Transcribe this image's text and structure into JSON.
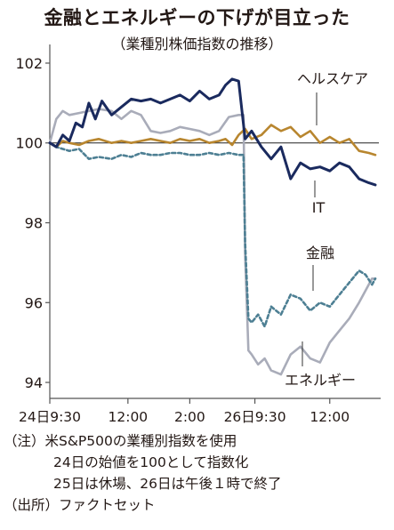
{
  "chart_data": {
    "type": "line",
    "title": "金融とエネルギーの下げが目立った",
    "subtitle": "（業種別株価指数の推移）",
    "xlabel": "",
    "ylabel": "",
    "x_ticks": [
      "24日9:30",
      "12:00",
      "2:00",
      "26日9:30",
      "12:00"
    ],
    "y_ticks": [
      94,
      96,
      98,
      100,
      102
    ],
    "ylim": [
      93.6,
      102.2
    ],
    "reference_line": 100,
    "grid": false,
    "legend": "labels placed next to lines",
    "series": [
      {
        "name": "ヘルスケア",
        "color": "#b8862f",
        "style": "solid",
        "x": [
          0,
          0.02,
          0.04,
          0.06,
          0.09,
          0.12,
          0.15,
          0.19,
          0.22,
          0.25,
          0.28,
          0.31,
          0.34,
          0.37,
          0.4,
          0.43,
          0.46,
          0.49,
          0.52,
          0.54,
          0.56,
          0.58,
          0.6,
          0.62,
          0.65,
          0.68,
          0.71,
          0.74,
          0.77,
          0.8,
          0.83,
          0.86,
          0.89,
          0.92,
          0.95,
          0.98,
          1.0
        ],
        "values": [
          100.0,
          99.9,
          100.05,
          100.0,
          99.95,
          100.05,
          100.1,
          100.0,
          100.05,
          100.0,
          100.05,
          100.1,
          100.05,
          100.0,
          100.1,
          100.05,
          100.1,
          100.0,
          100.05,
          100.1,
          99.95,
          100.2,
          100.35,
          100.1,
          100.2,
          100.45,
          100.3,
          100.4,
          100.15,
          100.3,
          100.0,
          100.15,
          100.0,
          100.1,
          99.8,
          99.75,
          99.7
        ]
      },
      {
        "name": "IT",
        "color": "#1a2a5e",
        "style": "solid",
        "x": [
          0,
          0.02,
          0.04,
          0.06,
          0.08,
          0.1,
          0.12,
          0.14,
          0.16,
          0.19,
          0.22,
          0.25,
          0.28,
          0.31,
          0.34,
          0.37,
          0.4,
          0.43,
          0.46,
          0.49,
          0.52,
          0.54,
          0.56,
          0.58,
          0.6,
          0.62,
          0.65,
          0.68,
          0.71,
          0.74,
          0.77,
          0.8,
          0.83,
          0.86,
          0.89,
          0.92,
          0.95,
          0.98,
          1.0
        ],
        "values": [
          100.0,
          99.9,
          100.2,
          100.05,
          100.5,
          100.4,
          101.0,
          100.6,
          101.05,
          100.7,
          100.9,
          101.1,
          101.05,
          101.1,
          101.0,
          101.1,
          101.2,
          101.05,
          101.3,
          101.1,
          101.2,
          101.45,
          101.6,
          101.55,
          100.1,
          100.3,
          99.9,
          99.6,
          99.9,
          99.1,
          99.5,
          99.35,
          99.4,
          99.3,
          99.5,
          99.4,
          99.1,
          99.0,
          98.95
        ]
      },
      {
        "name": "金融",
        "color": "#4d7f93",
        "style": "dashed",
        "x": [
          0,
          0.02,
          0.04,
          0.06,
          0.09,
          0.12,
          0.15,
          0.19,
          0.22,
          0.25,
          0.28,
          0.31,
          0.34,
          0.37,
          0.4,
          0.43,
          0.46,
          0.49,
          0.52,
          0.55,
          0.58,
          0.595,
          0.6,
          0.61,
          0.62,
          0.64,
          0.66,
          0.68,
          0.71,
          0.74,
          0.77,
          0.8,
          0.83,
          0.86,
          0.89,
          0.92,
          0.95,
          0.97,
          0.99,
          1.0
        ],
        "values": [
          100.0,
          99.9,
          99.85,
          99.8,
          99.85,
          99.6,
          99.65,
          99.6,
          99.7,
          99.65,
          99.75,
          99.7,
          99.7,
          99.75,
          99.75,
          99.7,
          99.7,
          99.75,
          99.7,
          99.75,
          99.7,
          99.7,
          97.5,
          95.6,
          95.5,
          95.7,
          95.4,
          95.9,
          95.7,
          96.2,
          96.1,
          95.8,
          96.0,
          95.9,
          96.2,
          96.5,
          96.8,
          96.7,
          96.45,
          96.6
        ]
      },
      {
        "name": "エネルギー",
        "color": "#a9acb9",
        "style": "solid",
        "x": [
          0,
          0.02,
          0.04,
          0.06,
          0.09,
          0.12,
          0.15,
          0.19,
          0.22,
          0.25,
          0.28,
          0.31,
          0.34,
          0.37,
          0.4,
          0.43,
          0.46,
          0.49,
          0.52,
          0.55,
          0.58,
          0.595,
          0.6,
          0.61,
          0.62,
          0.64,
          0.66,
          0.68,
          0.71,
          0.74,
          0.77,
          0.8,
          0.83,
          0.86,
          0.89,
          0.92,
          0.95,
          0.97,
          0.99,
          1.0
        ],
        "values": [
          100.0,
          100.6,
          100.8,
          100.7,
          100.75,
          100.8,
          100.85,
          100.8,
          100.6,
          100.8,
          100.7,
          100.3,
          100.25,
          100.3,
          100.4,
          100.35,
          100.3,
          100.2,
          100.3,
          100.65,
          100.7,
          100.7,
          97.2,
          94.8,
          94.7,
          94.45,
          94.6,
          94.3,
          94.2,
          94.7,
          94.9,
          94.6,
          94.5,
          95.0,
          95.3,
          95.6,
          96.0,
          96.3,
          96.6,
          96.6
        ]
      }
    ]
  },
  "notes": {
    "line1": "（注）米S&P500の業種別指数を使用",
    "line2": "24日の始値を100として指数化",
    "line3": "25日は休場、26日は午後１時で終了",
    "source": "（出所）ファクトセット"
  }
}
